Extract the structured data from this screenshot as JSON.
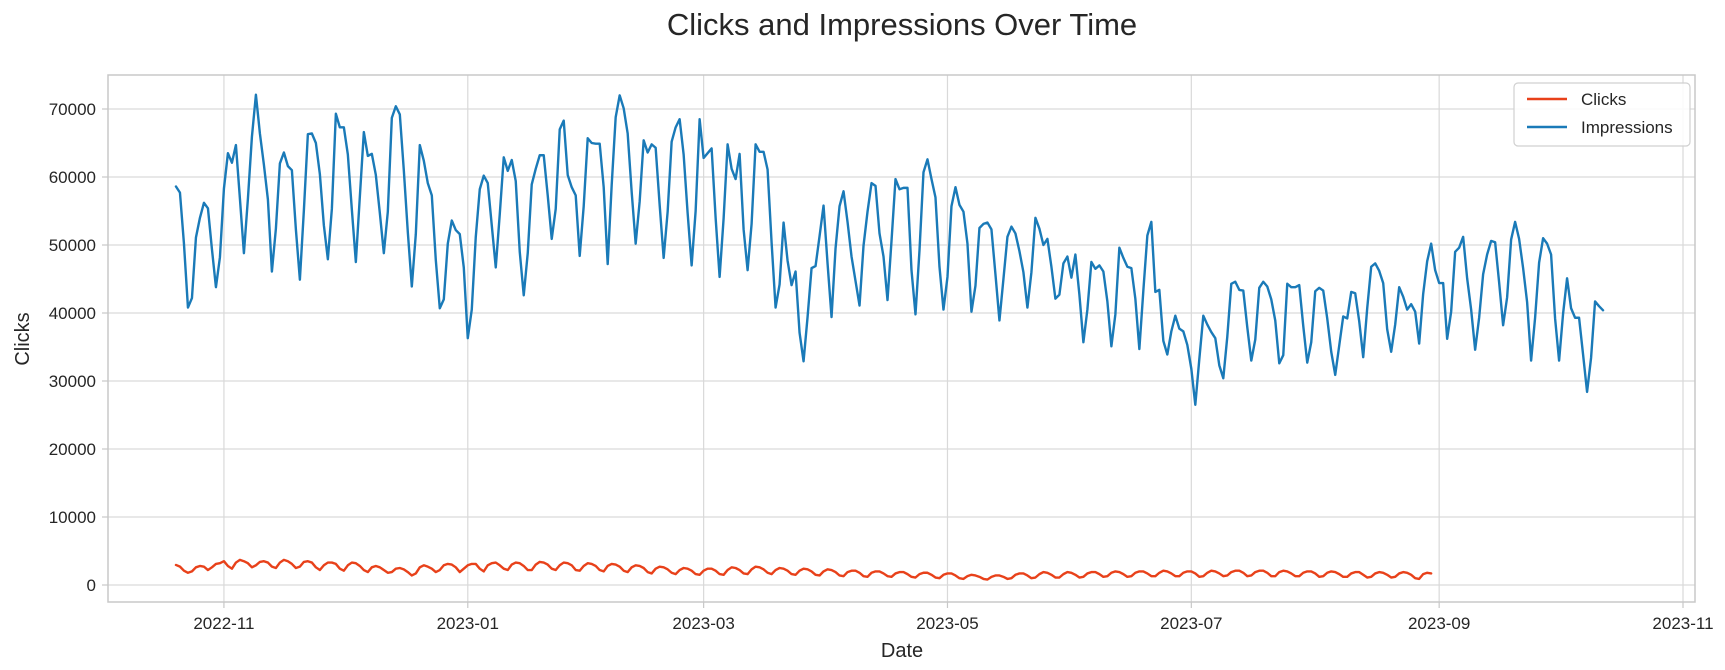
{
  "chart_data": {
    "type": "line",
    "title": "Clicks and Impressions Over Time",
    "xlabel": "Date",
    "ylabel": "Clicks",
    "xlim": [
      "2022-10-03",
      "2023-11-04"
    ],
    "ylim": [
      -2500,
      75000
    ],
    "x_ticks": [
      "2022-11",
      "2023-01",
      "2023-03",
      "2023-05",
      "2023-07",
      "2023-09",
      "2023-11"
    ],
    "y_ticks": [
      0,
      10000,
      20000,
      30000,
      40000,
      50000,
      60000,
      70000
    ],
    "grid": true,
    "legend_position": "top-right",
    "x_start_date": "2022-10-20",
    "x_step_days": 1,
    "series": [
      {
        "name": "Clicks",
        "color": "#e8411a",
        "values": [
          2950,
          2700,
          2100,
          1800,
          2000,
          2600,
          2800,
          2700,
          2200,
          2600,
          3100,
          3200,
          3500,
          2800,
          2400,
          3300,
          3700,
          3500,
          3200,
          2600,
          2900,
          3400,
          3500,
          3300,
          2700,
          2500,
          3300,
          3700,
          3500,
          3100,
          2500,
          2700,
          3400,
          3500,
          3300,
          2600,
          2200,
          2900,
          3300,
          3300,
          3100,
          2400,
          2100,
          2900,
          3300,
          3200,
          2800,
          2200,
          1900,
          2600,
          2800,
          2600,
          2200,
          1800,
          1900,
          2400,
          2500,
          2300,
          1900,
          1400,
          1700,
          2600,
          2900,
          2700,
          2400,
          1900,
          2200,
          2900,
          3100,
          3000,
          2600,
          1900,
          2400,
          2900,
          3100,
          3100,
          2400,
          2000,
          2900,
          3200,
          3300,
          2900,
          2400,
          2200,
          3000,
          3300,
          3200,
          2800,
          2200,
          2200,
          3000,
          3400,
          3300,
          3000,
          2400,
          2200,
          2900,
          3300,
          3200,
          2900,
          2200,
          2100,
          2800,
          3200,
          3100,
          2800,
          2200,
          2000,
          2800,
          3100,
          3000,
          2700,
          2100,
          1900,
          2600,
          2900,
          2800,
          2500,
          1900,
          1700,
          2400,
          2700,
          2600,
          2300,
          1800,
          1600,
          2200,
          2500,
          2400,
          2100,
          1600,
          1500,
          2100,
          2400,
          2400,
          2100,
          1600,
          1500,
          2200,
          2600,
          2500,
          2200,
          1700,
          1600,
          2300,
          2700,
          2600,
          2300,
          1800,
          1600,
          2200,
          2500,
          2400,
          2100,
          1600,
          1500,
          2100,
          2400,
          2300,
          2000,
          1500,
          1400,
          2000,
          2300,
          2200,
          1900,
          1400,
          1300,
          1900,
          2100,
          2100,
          1800,
          1300,
          1200,
          1800,
          2000,
          2000,
          1700,
          1300,
          1200,
          1700,
          1900,
          1900,
          1600,
          1200,
          1100,
          1600,
          1800,
          1800,
          1500,
          1100,
          1000,
          1500,
          1700,
          1700,
          1400,
          1000,
          900,
          1300,
          1500,
          1400,
          1200,
          900,
          800,
          1200,
          1400,
          1400,
          1200,
          900,
          1000,
          1500,
          1700,
          1700,
          1400,
          1000,
          1100,
          1600,
          1900,
          1800,
          1500,
          1100,
          1100,
          1600,
          1900,
          1800,
          1500,
          1100,
          1200,
          1700,
          1900,
          1900,
          1600,
          1200,
          1300,
          1800,
          2000,
          1900,
          1600,
          1200,
          1300,
          1800,
          2000,
          2000,
          1700,
          1300,
          1300,
          1800,
          2100,
          2000,
          1700,
          1300,
          1300,
          1800,
          2000,
          2000,
          1700,
          1200,
          1300,
          1800,
          2100,
          2000,
          1700,
          1300,
          1400,
          1900,
          2100,
          2100,
          1800,
          1300,
          1400,
          1900,
          2100,
          2100,
          1800,
          1300,
          1300,
          1900,
          2100,
          2000,
          1700,
          1300,
          1300,
          1800,
          2000,
          2000,
          1700,
          1200,
          1300,
          1800,
          2000,
          1900,
          1600,
          1200,
          1200,
          1700,
          1900,
          1900,
          1500,
          1100,
          1200,
          1700,
          1900,
          1800,
          1500,
          1100,
          1200,
          1700,
          1900,
          1800,
          1500,
          1000,
          900,
          1600,
          1800,
          1700
        ],
        "note_points": 0
      },
      {
        "name": "Impressions",
        "color": "#1a7ab8",
        "values": [
          58600,
          57700,
          50200,
          40800,
          42200,
          51100,
          54000,
          56200,
          55400,
          49400,
          43800,
          48200,
          58300,
          63500,
          62100,
          64700,
          56800,
          48800,
          56800,
          65900,
          72100,
          66400,
          61800,
          56700,
          46100,
          52400,
          62000,
          63600,
          61600,
          61000,
          52300,
          44900,
          55100,
          66300,
          66400,
          65000,
          60400,
          52900,
          47900,
          55300,
          69300,
          67300,
          67300,
          63300,
          55200,
          47500,
          57100,
          66600,
          63100,
          63400,
          60300,
          54700,
          48800,
          54900,
          68700,
          70400,
          69200,
          61000,
          51900,
          43900,
          51600,
          64700,
          62400,
          59100,
          57300,
          47800,
          40700,
          42000,
          50200,
          53600,
          52200,
          51600,
          46700,
          36300,
          40500,
          51200,
          58200,
          60200,
          59100,
          52900,
          46700,
          54500,
          62900,
          60900,
          62500,
          59400,
          49000,
          42600,
          48800,
          58900,
          61200,
          63200,
          63200,
          57300,
          50900,
          55300,
          67000,
          68300,
          60300,
          58500,
          57300,
          48400,
          55700,
          65700,
          65000,
          64900,
          64900,
          58500,
          47200,
          58800,
          68800,
          72000,
          70100,
          66400,
          57800,
          50200,
          56400,
          65400,
          63600,
          64800,
          64300,
          55900,
          48100,
          54900,
          65200,
          67300,
          68500,
          63300,
          54700,
          47000,
          55000,
          68500,
          62800,
          63500,
          64200,
          54000,
          45300,
          53900,
          64800,
          61200,
          59700,
          63400,
          52300,
          46300,
          53100,
          64800,
          63700,
          63700,
          61100,
          50400,
          40800,
          44200,
          53300,
          47700,
          44100,
          46100,
          37100,
          32900,
          39400,
          46600,
          46900,
          51300,
          55800,
          47300,
          39400,
          49500,
          55700,
          57900,
          53400,
          48300,
          44700,
          41100,
          49900,
          54900,
          59100,
          58700,
          51700,
          48300,
          41900,
          50600,
          59700,
          58200,
          58400,
          58400,
          46300,
          39800,
          49200,
          60700,
          62600,
          59700,
          57000,
          46800,
          40500,
          45300,
          55700,
          58500,
          55900,
          54900,
          50200,
          40200,
          44000,
          52500,
          53100,
          53300,
          52300,
          45700,
          38900,
          45000,
          51200,
          52700,
          51700,
          49100,
          46000,
          40800,
          46000,
          54000,
          52400,
          50000,
          50900,
          46800,
          42100,
          42700,
          47300,
          48300,
          45200,
          48600,
          42700,
          35700,
          40500,
          47500,
          46500,
          47000,
          46100,
          41700,
          35100,
          39800,
          49600,
          48100,
          46800,
          46600,
          42100,
          34700,
          43300,
          51400,
          53400,
          43100,
          43400,
          35900,
          33900,
          37300,
          39600,
          37700,
          37300,
          35300,
          31800,
          26500,
          33200,
          39600,
          38300,
          37200,
          36300,
          32300,
          30400,
          36500,
          44300,
          44600,
          43400,
          43300,
          37900,
          33000,
          36100,
          43700,
          44600,
          43900,
          42000,
          38900,
          32600,
          33800,
          44300,
          43800,
          43800,
          44100,
          38100,
          32700,
          35700,
          43200,
          43700,
          43300,
          39200,
          34300,
          30900,
          35200,
          39500,
          39200,
          43100,
          42900,
          38800,
          33500,
          40700,
          46800,
          47300,
          46200,
          44400,
          37600,
          34300,
          38300,
          43800,
          42400,
          40500,
          41300,
          40200,
          35500,
          42800,
          47600,
          50200,
          46300,
          44400,
          44400,
          36200,
          40200,
          49000,
          49600,
          51200,
          45100,
          40500,
          34600,
          39300,
          45700,
          48600,
          50600,
          50400,
          44500,
          38200,
          42300,
          50800,
          53400,
          50900,
          46600,
          41600,
          33000,
          39300,
          47400,
          51000,
          50200,
          48600,
          39200,
          33000,
          39900,
          45100,
          40700,
          39300,
          39300,
          33900,
          28400,
          33400,
          41700,
          41000,
          40400
        ]
      }
    ]
  }
}
